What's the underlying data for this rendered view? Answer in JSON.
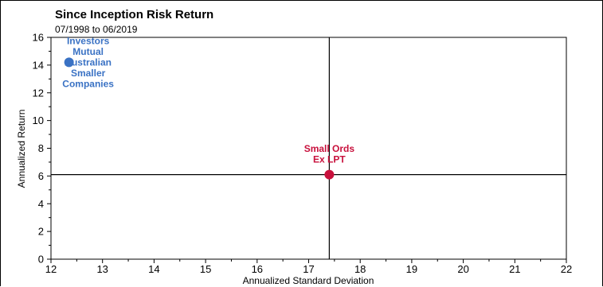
{
  "chart_data": {
    "type": "scatter",
    "title": "Since Inception Risk Return",
    "subtitle": "07/1998 to 06/2019",
    "xlabel": "Annualized Standard Deviation",
    "ylabel": "Annualized Return",
    "xlim": [
      12,
      22
    ],
    "ylim": [
      0,
      16
    ],
    "xticks": [
      "12",
      "13",
      "14",
      "15",
      "16",
      "17",
      "18",
      "19",
      "20",
      "21",
      "22"
    ],
    "yticks": [
      "0",
      "2",
      "4",
      "6",
      "8",
      "10",
      "12",
      "14",
      "16"
    ],
    "crosshair": {
      "x": 17.4,
      "y": 6.1
    },
    "points": [
      {
        "name": "Investors Mutual Australian Smaller Companies",
        "label_lines": [
          "Investors",
          "Mutual",
          "Australian",
          "Smaller",
          "Companies"
        ],
        "x": 12.35,
        "y": 14.2,
        "color": "#3a72c4"
      },
      {
        "name": "Small Ords Ex LPT",
        "label_lines": [
          "Small Ords",
          "Ex LPT"
        ],
        "x": 17.4,
        "y": 6.1,
        "color": "#c8103c"
      }
    ],
    "grid": false
  }
}
